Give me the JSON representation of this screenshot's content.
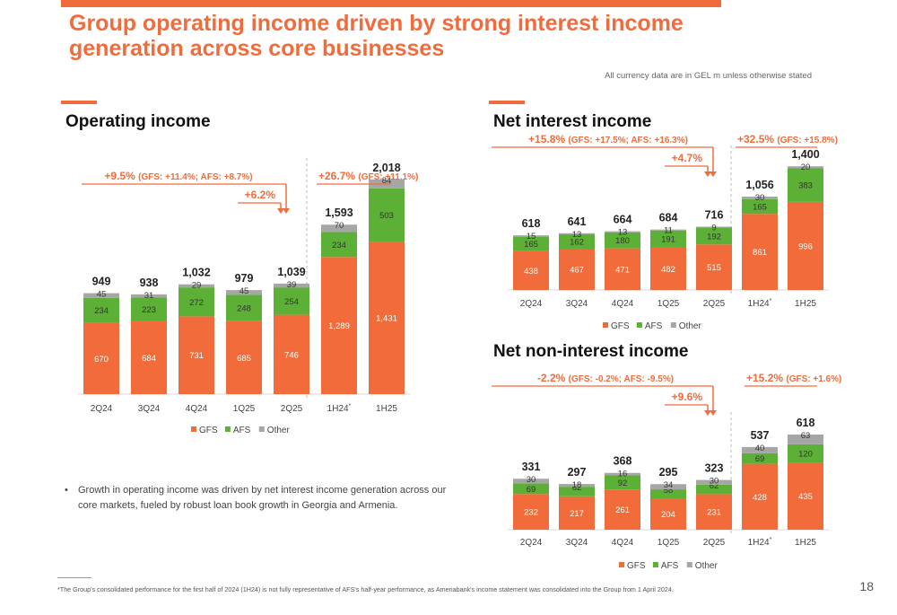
{
  "header": {
    "title_line1": "Group operating income driven by strong interest income",
    "title_line2": "generation across core businesses",
    "currency_note": "All currency data are in GEL m unless otherwise stated"
  },
  "colors": {
    "accent": "#f26b3a",
    "gfs": "#f26b3a",
    "afs": "#5cb035",
    "other": "#a6a6a6",
    "growth_green": "#5cb035"
  },
  "chart_data": [
    {
      "id": "operating_income",
      "type": "bar",
      "title": "Operating income",
      "categories": [
        "2Q24",
        "3Q24",
        "4Q24",
        "1Q25",
        "2Q25",
        "1H24",
        "1H25"
      ],
      "category_markers": [
        "",
        "",
        "",
        "",
        "",
        "*",
        ""
      ],
      "series": [
        {
          "name": "GFS",
          "values": [
            670,
            684,
            731,
            685,
            746,
            1289,
            1431
          ]
        },
        {
          "name": "AFS",
          "values": [
            234,
            223,
            272,
            248,
            254,
            234,
            503
          ]
        },
        {
          "name": "Other",
          "values": [
            45,
            31,
            29,
            45,
            39,
            70,
            84
          ]
        }
      ],
      "totals": [
        "949",
        "938",
        "1,032",
        "979",
        "1,039",
        "1,593",
        "2,018"
      ],
      "value_labels": {
        "GFS": [
          "670",
          "684",
          "731",
          "685",
          "746",
          "1,289",
          "1,431"
        ],
        "AFS": [
          "234",
          "223",
          "272",
          "248",
          "254",
          "234",
          "503"
        ],
        "Other": [
          "45",
          "31",
          "29",
          "45",
          "39",
          "70",
          "84"
        ]
      },
      "annotations": {
        "yoy_main": "+9.5%",
        "yoy_detail": "(GFS: +11.4%; AFS: +8.7%)",
        "qoq": "+6.2%",
        "hoh_main": "+26.7%",
        "hoh_detail": "(GFS: +11.1%)"
      },
      "legend": [
        "GFS",
        "AFS",
        "Other"
      ],
      "legend_position": "bottom",
      "grid": false,
      "bullet": "Growth in operating income was driven by net interest income generation across our core markets, fueled by robust loan book growth in Georgia and Armenia."
    },
    {
      "id": "net_interest_income",
      "type": "bar",
      "title": "Net interest income",
      "categories": [
        "2Q24",
        "3Q24",
        "4Q24",
        "1Q25",
        "2Q25",
        "1H24",
        "1H25"
      ],
      "category_markers": [
        "",
        "",
        "",
        "",
        "",
        "*",
        ""
      ],
      "series": [
        {
          "name": "GFS",
          "values": [
            438,
            467,
            471,
            482,
            515,
            861,
            996
          ]
        },
        {
          "name": "AFS",
          "values": [
            165,
            162,
            180,
            191,
            192,
            165,
            383
          ]
        },
        {
          "name": "Other",
          "values": [
            15,
            13,
            13,
            11,
            9,
            30,
            20
          ]
        }
      ],
      "totals": [
        "618",
        "641",
        "664",
        "684",
        "716",
        "1,056",
        "1,400"
      ],
      "value_labels": {
        "GFS": [
          "438",
          "467",
          "471",
          "482",
          "515",
          "861",
          "996"
        ],
        "AFS": [
          "165",
          "162",
          "180",
          "191",
          "192",
          "165",
          "383"
        ],
        "Other": [
          "15",
          "13",
          "13",
          "11",
          "9",
          "30",
          "20"
        ]
      },
      "annotations": {
        "yoy_main": "+15.8%",
        "yoy_detail": "(GFS: +17.5%; AFS: +16.3%)",
        "qoq": "+4.7%",
        "hoh_main": "+32.5%",
        "hoh_detail": "(GFS: +15.8%)"
      },
      "legend": [
        "GFS",
        "AFS",
        "Other"
      ],
      "legend_position": "bottom",
      "grid": false
    },
    {
      "id": "net_non_interest_income",
      "type": "bar",
      "title": "Net non-interest income",
      "categories": [
        "2Q24",
        "3Q24",
        "4Q24",
        "1Q25",
        "2Q25",
        "1H24",
        "1H25"
      ],
      "category_markers": [
        "",
        "",
        "",
        "",
        "",
        "*",
        ""
      ],
      "series": [
        {
          "name": "GFS",
          "values": [
            232,
            217,
            261,
            204,
            231,
            428,
            435
          ]
        },
        {
          "name": "AFS",
          "values": [
            69,
            62,
            92,
            58,
            62,
            69,
            120
          ]
        },
        {
          "name": "Other",
          "values": [
            30,
            18,
            16,
            34,
            30,
            40,
            63
          ]
        }
      ],
      "totals": [
        "331",
        "297",
        "368",
        "295",
        "323",
        "537",
        "618"
      ],
      "value_labels": {
        "GFS": [
          "232",
          "217",
          "261",
          "204",
          "231",
          "428",
          "435"
        ],
        "AFS": [
          "69",
          "62",
          "92",
          "58",
          "62",
          "69",
          "120"
        ],
        "Other": [
          "30",
          "18",
          "16",
          "34",
          "30",
          "40",
          "63"
        ]
      },
      "annotations": {
        "yoy_main": "-2.2%",
        "yoy_detail": "(GFS: -0.2%; AFS: -9.5%)",
        "qoq": "+9.6%",
        "hoh_main": "+15.2%",
        "hoh_detail": "(GFS: +1.6%)"
      },
      "legend": [
        "GFS",
        "AFS",
        "Other"
      ],
      "legend_position": "bottom",
      "grid": false
    }
  ],
  "footer": {
    "footnote": "*The Group's consolidated performance for the first half of 2024 (1H24) is not fully representative of AFS's half-year performance, as Ameriabank's income statement was consolidated into the Group from 1 April 2024.",
    "page_number": "18"
  }
}
